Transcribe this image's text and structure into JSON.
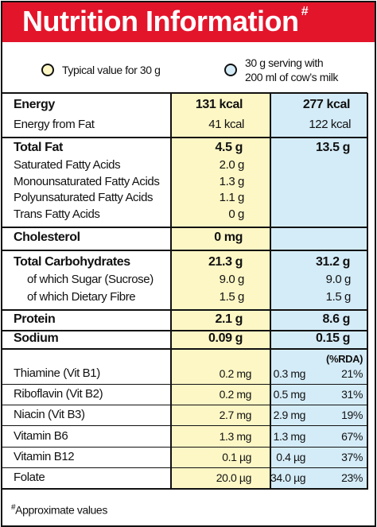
{
  "header": {
    "title": "Nutrition Information",
    "title_mark": "#"
  },
  "legend": [
    {
      "lines": [
        "Typical value for 30 g"
      ],
      "color": "#fdf7c5"
    },
    {
      "lines": [
        "30 g serving with",
        "200 ml of cow’s milk"
      ],
      "color": "#d4ecf8"
    }
  ],
  "nutrients": [
    {
      "rows": [
        {
          "label": "Energy",
          "per_30g": "131 kcal",
          "with_milk": "277 kcal"
        },
        {
          "label": "Energy from Fat",
          "per_30g": "41 kcal",
          "with_milk": "122 kcal"
        }
      ]
    },
    {
      "rows": [
        {
          "label": "Total Fat",
          "per_30g": "4.5 g",
          "with_milk": "13.5 g"
        },
        {
          "label": "Saturated Fatty Acids",
          "per_30g": "2.0 g"
        },
        {
          "label": "Monounsaturated Fatty Acids",
          "per_30g": "1.3 g"
        },
        {
          "label": "Polyunsaturated Fatty Acids",
          "per_30g": "1.1 g"
        },
        {
          "label": "Trans Fatty Acids",
          "per_30g": "0 g"
        }
      ]
    },
    {
      "rows": [
        {
          "label": "Cholesterol",
          "per_30g": "0 mg"
        }
      ]
    },
    {
      "rows": [
        {
          "label": "Total Carbohydrates",
          "per_30g": "21.3 g",
          "with_milk": "31.2 g"
        },
        {
          "label": "of which Sugar (Sucrose)",
          "per_30g": "9.0 g",
          "with_milk": "9.0 g"
        },
        {
          "label": "of which Dietary Fibre",
          "per_30g": "1.5 g",
          "with_milk": "1.5 g"
        }
      ]
    },
    {
      "rows": [
        {
          "label": "Protein",
          "per_30g": "2.1 g",
          "with_milk": "8.6 g"
        }
      ]
    },
    {
      "rows": [
        {
          "label": "Sodium",
          "per_30g": "0.09 g",
          "with_milk": "0.15 g"
        }
      ]
    }
  ],
  "rda_header": "(%RDA)",
  "vitamins": [
    {
      "label": "Thiamine (Vit B1)",
      "per_30g": "0.2 mg",
      "with_milk": "0.3 mg",
      "rda": "21%"
    },
    {
      "label": "Riboflavin (Vit B2)",
      "per_30g": "0.2 mg",
      "with_milk": "0.5 mg",
      "rda": "31%"
    },
    {
      "label": "Niacin (Vit B3)",
      "per_30g": "2.7 mg",
      "with_milk": "2.9 mg",
      "rda": "19%"
    },
    {
      "label": "Vitamin B6",
      "per_30g": "1.3 mg",
      "with_milk": "1.3 mg",
      "rda": "67%"
    },
    {
      "label": "Vitamin B12",
      "per_30g": "0.1 µg",
      "with_milk": "0.4 µg",
      "rda": "37%"
    },
    {
      "label": "Folate",
      "per_30g": "20.0 µg",
      "with_milk": "34.0 µg",
      "rda": "23%"
    }
  ],
  "footnote": {
    "mark": "#",
    "text": "Approximate values"
  }
}
